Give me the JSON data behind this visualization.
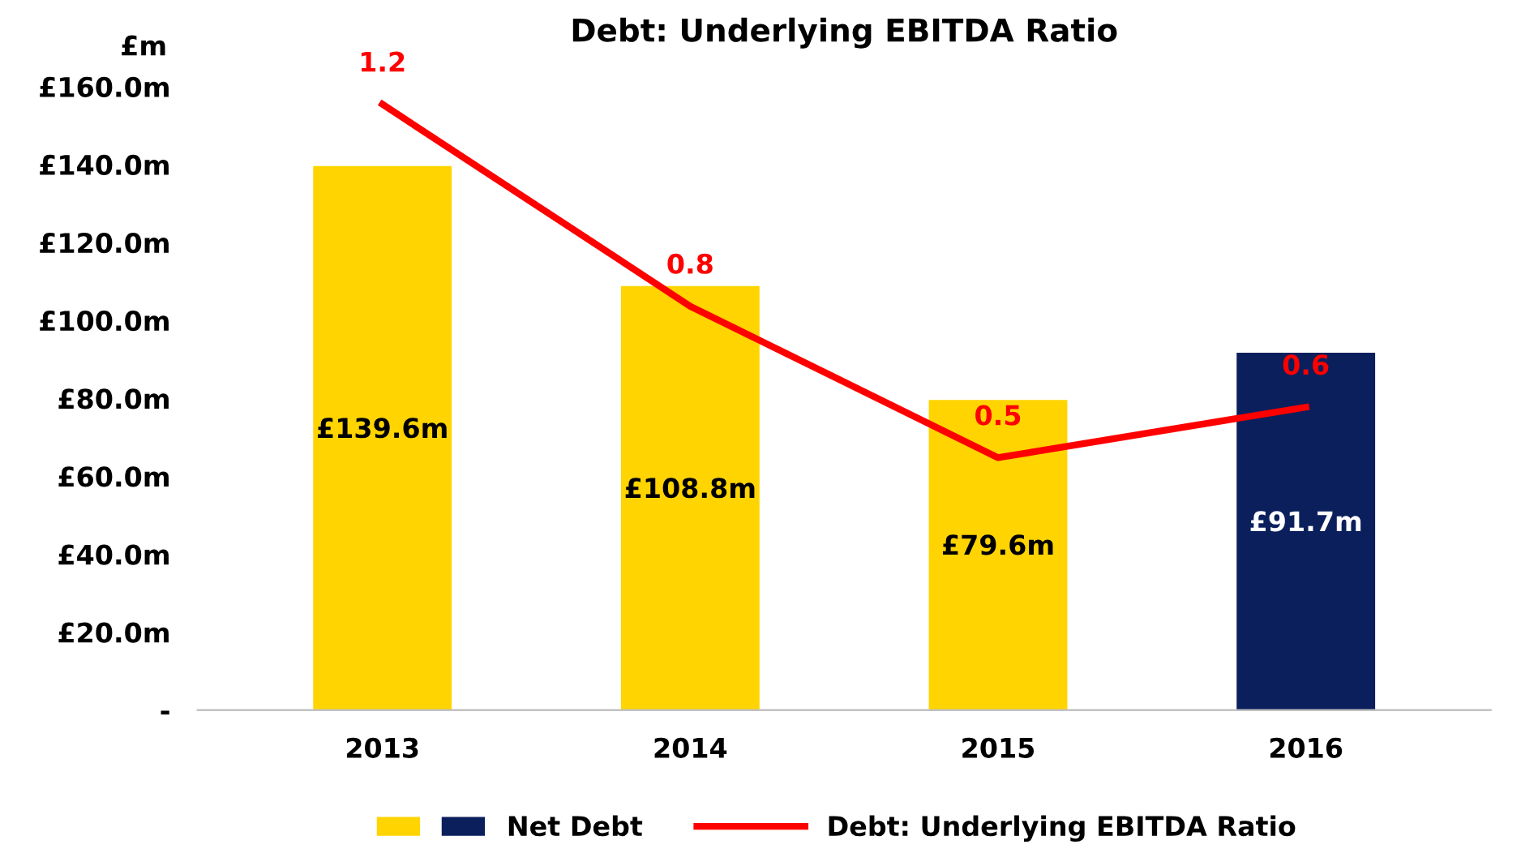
{
  "chart_data": {
    "type": "bar",
    "title": "Debt: Underlying EBITDA Ratio",
    "ylabel": "£m",
    "categories": [
      "2013",
      "2014",
      "2015",
      "2016"
    ],
    "series": [
      {
        "name": "Net Debt",
        "colors": [
          "#ffd400",
          "#ffd400",
          "#ffd400",
          "#0b1f5c"
        ],
        "values": [
          139.6,
          108.8,
          79.6,
          91.7
        ],
        "value_labels": [
          "£139.6m",
          "£108.8m",
          "£79.6m",
          "£91.7m"
        ]
      },
      {
        "name": "Debt: Underlying EBITDA Ratio",
        "type": "line",
        "axis": "y2",
        "color": "#ff0000",
        "values": [
          1.2,
          0.8,
          0.5,
          0.6
        ],
        "value_labels": [
          "1.2",
          "0.8",
          "0.5",
          "0.6"
        ]
      }
    ],
    "ylim": [
      0,
      160
    ],
    "yticks": [
      {
        "value": 0,
        "label": "-"
      },
      {
        "value": 20,
        "label": "£20.0m"
      },
      {
        "value": 40,
        "label": "£40.0m"
      },
      {
        "value": 60,
        "label": "£60.0m"
      },
      {
        "value": 80,
        "label": "£80.0m"
      },
      {
        "value": 100,
        "label": "£100.0m"
      },
      {
        "value": 120,
        "label": "£120.0m"
      },
      {
        "value": 140,
        "label": "£140.0m"
      },
      {
        "value": 160,
        "label": "£160.0m"
      }
    ],
    "grid": false,
    "legend": "bottom",
    "marker": "none",
    "line_style": "solid"
  }
}
